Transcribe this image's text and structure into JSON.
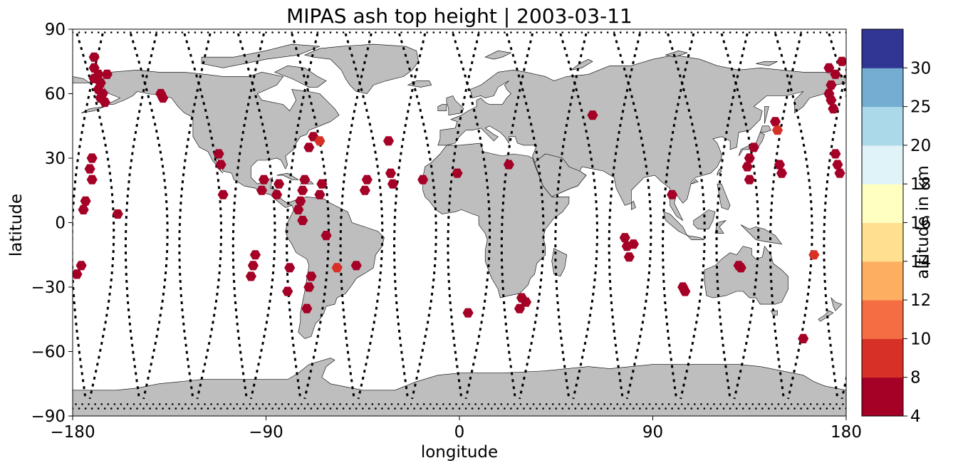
{
  "chart_data": {
    "type": "scatter",
    "title": "MIPAS ash top height | 2003-03-11",
    "xlabel": "longitude",
    "ylabel": "latitude",
    "xlim": [
      -180,
      180
    ],
    "ylim": [
      -90,
      90
    ],
    "xticks": [
      -180,
      -90,
      0,
      90,
      180
    ],
    "xtick_labels": [
      "−180",
      "−90",
      "0",
      "90",
      "180"
    ],
    "yticks": [
      -90,
      -60,
      -30,
      0,
      30,
      60,
      90
    ],
    "ytick_labels": [
      "−90",
      "−60",
      "−30",
      "0",
      "30",
      "60",
      "90"
    ],
    "grid": false,
    "background_map": "world coastlines, land filled grey",
    "colors": {
      "land": "#bebebe",
      "ocean": "#ffffff",
      "track": "#000000"
    },
    "colorbar": {
      "label": "altitude in km",
      "boundaries": [
        4,
        8,
        10,
        12,
        14,
        16,
        18,
        20,
        25,
        30
      ],
      "tick_labels": [
        "4",
        "8",
        "10",
        "12",
        "14",
        "16",
        "18",
        "20",
        "25",
        "30"
      ],
      "colors": [
        "#a50026",
        "#d73027",
        "#f46d43",
        "#fdae61",
        "#fee090",
        "#ffffbf",
        "#e0f3f8",
        "#abd9e9",
        "#74add1",
        "#313695"
      ]
    },
    "orbit_tracks": "MIPAS measurement locations drawn as black dotted descending/ascending orbit paths",
    "series": [
      {
        "marker": "hexagon",
        "points": [
          {
            "x": -170,
            "y": 77,
            "z": 6
          },
          {
            "x": -170,
            "y": 72,
            "z": 6
          },
          {
            "x": -168,
            "y": 69,
            "z": 6
          },
          {
            "x": -170,
            "y": 67,
            "z": 6
          },
          {
            "x": -164,
            "y": 69,
            "z": 6
          },
          {
            "x": -167,
            "y": 65,
            "z": 6
          },
          {
            "x": -168,
            "y": 62,
            "z": 6
          },
          {
            "x": -166,
            "y": 60,
            "z": 6
          },
          {
            "x": -167,
            "y": 58,
            "z": 6
          },
          {
            "x": -165,
            "y": 56,
            "z": 6
          },
          {
            "x": -171,
            "y": 30,
            "z": 6
          },
          {
            "x": -172,
            "y": 25,
            "z": 6
          },
          {
            "x": -171,
            "y": 20,
            "z": 6
          },
          {
            "x": -174,
            "y": 10,
            "z": 6
          },
          {
            "x": -175,
            "y": 6,
            "z": 6
          },
          {
            "x": -159,
            "y": 4,
            "z": 6
          },
          {
            "x": -176,
            "y": -20,
            "z": 6
          },
          {
            "x": -178,
            "y": -24,
            "z": 6
          },
          {
            "x": -139,
            "y": 60,
            "z": 6
          },
          {
            "x": -138,
            "y": 58,
            "z": 6
          },
          {
            "x": -112,
            "y": 32,
            "z": 6
          },
          {
            "x": -111,
            "y": 27,
            "z": 6
          },
          {
            "x": -110,
            "y": 13,
            "z": 6
          },
          {
            "x": -91,
            "y": 20,
            "z": 6
          },
          {
            "x": -92,
            "y": 15,
            "z": 6
          },
          {
            "x": -84,
            "y": 18,
            "z": 6
          },
          {
            "x": -85,
            "y": 13,
            "z": 6
          },
          {
            "x": -95,
            "y": -15,
            "z": 6
          },
          {
            "x": -96,
            "y": -20,
            "z": 6
          },
          {
            "x": -97,
            "y": -25,
            "z": 6
          },
          {
            "x": -79,
            "y": -21,
            "z": 6
          },
          {
            "x": -80,
            "y": -32,
            "z": 6
          },
          {
            "x": -72,
            "y": 20,
            "z": 6
          },
          {
            "x": -73,
            "y": 15,
            "z": 6
          },
          {
            "x": -74,
            "y": 10,
            "z": 6
          },
          {
            "x": -75,
            "y": 6,
            "z": 6
          },
          {
            "x": -73,
            "y": 1,
            "z": 6
          },
          {
            "x": -68,
            "y": 40,
            "z": 6
          },
          {
            "x": -70,
            "y": 35,
            "z": 6
          },
          {
            "x": -64,
            "y": 18,
            "z": 6
          },
          {
            "x": -65,
            "y": 13,
            "z": 6
          },
          {
            "x": -62,
            "y": -6,
            "z": 6
          },
          {
            "x": -69,
            "y": -25,
            "z": 6
          },
          {
            "x": -70,
            "y": -30,
            "z": 6
          },
          {
            "x": -71,
            "y": -40,
            "z": 6
          },
          {
            "x": -43,
            "y": 20,
            "z": 6
          },
          {
            "x": -44,
            "y": 15,
            "z": 6
          },
          {
            "x": -33,
            "y": 38,
            "z": 6
          },
          {
            "x": -32,
            "y": 23,
            "z": 6
          },
          {
            "x": -31,
            "y": 18,
            "z": 6
          },
          {
            "x": -48,
            "y": -20,
            "z": 6
          },
          {
            "x": -17,
            "y": 20,
            "z": 6
          },
          {
            "x": -1,
            "y": 23,
            "z": 6
          },
          {
            "x": 4,
            "y": -42,
            "z": 6
          },
          {
            "x": 23,
            "y": 27,
            "z": 6
          },
          {
            "x": 29,
            "y": -35,
            "z": 6
          },
          {
            "x": 31,
            "y": -37,
            "z": 6
          },
          {
            "x": 28,
            "y": -40,
            "z": 6
          },
          {
            "x": 62,
            "y": 50,
            "z": 6
          },
          {
            "x": 77,
            "y": -7,
            "z": 6
          },
          {
            "x": 78,
            "y": -11,
            "z": 6
          },
          {
            "x": 81,
            "y": -10,
            "z": 6
          },
          {
            "x": 79,
            "y": -16,
            "z": 6
          },
          {
            "x": 99,
            "y": 13,
            "z": 6
          },
          {
            "x": 104,
            "y": -30,
            "z": 6
          },
          {
            "x": 105,
            "y": -32,
            "z": 6
          },
          {
            "x": 130,
            "y": -20,
            "z": 6
          },
          {
            "x": 131,
            "y": -21,
            "z": 6
          },
          {
            "x": 137,
            "y": 35,
            "z": 6
          },
          {
            "x": 135,
            "y": 30,
            "z": 6
          },
          {
            "x": 134,
            "y": 26,
            "z": 6
          },
          {
            "x": 135,
            "y": 20,
            "z": 6
          },
          {
            "x": 147,
            "y": 47,
            "z": 6
          },
          {
            "x": 149,
            "y": 27,
            "z": 6
          },
          {
            "x": 150,
            "y": 23,
            "z": 6
          },
          {
            "x": 160,
            "y": -54,
            "z": 6
          },
          {
            "x": 172,
            "y": 72,
            "z": 6
          },
          {
            "x": 175,
            "y": 69,
            "z": 6
          },
          {
            "x": 173,
            "y": 64,
            "z": 6
          },
          {
            "x": 172,
            "y": 60,
            "z": 6
          },
          {
            "x": 173,
            "y": 57,
            "z": 6
          },
          {
            "x": 174,
            "y": 53,
            "z": 6
          },
          {
            "x": 178,
            "y": 75,
            "z": 6
          },
          {
            "x": 175,
            "y": 32,
            "z": 6
          },
          {
            "x": 176,
            "y": 27,
            "z": 6
          },
          {
            "x": 177,
            "y": 23,
            "z": 6
          },
          {
            "x": -65,
            "y": 38,
            "z": 9
          },
          {
            "x": -57,
            "y": -21,
            "z": 9
          },
          {
            "x": 148,
            "y": 43,
            "z": 9
          },
          {
            "x": 165,
            "y": -15,
            "z": 9
          }
        ]
      }
    ]
  }
}
